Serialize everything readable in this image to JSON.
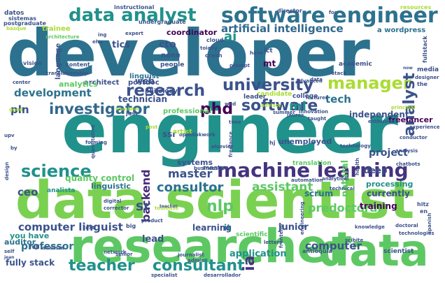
{
  "palette": {
    "dark_purple": "#440154",
    "indigo": "#3b528b",
    "teal_blue": "#2c728e",
    "teal": "#21918c",
    "green_teal": "#27ad81",
    "green": "#5dc863",
    "lime": "#aadc32",
    "yellow": "#fde725"
  },
  "words": [
    {
      "text": "developer",
      "color": "#2c728e"
    },
    {
      "text": "engineer",
      "color": "#21918c"
    },
    {
      "text": "data scientist",
      "color": "#7ad151"
    },
    {
      "text": "researcher",
      "color": "#5dc863"
    },
    {
      "text": "data",
      "color": "#5dc863"
    },
    {
      "text": "software engineer",
      "color": "#2c728e"
    },
    {
      "text": "data analyst",
      "color": "#21918c"
    },
    {
      "text": "machine learning",
      "color": "#46337e"
    },
    {
      "text": "research",
      "color": "#3b528b"
    },
    {
      "text": "manager",
      "color": "#aadc32"
    },
    {
      "text": "university",
      "color": "#3b528b"
    },
    {
      "text": "phd",
      "color": "#440154"
    },
    {
      "text": "software",
      "color": "#3b528b"
    },
    {
      "text": "investigator",
      "color": "#31688e"
    },
    {
      "text": "science",
      "color": "#21918c"
    },
    {
      "text": "teacher",
      "color": "#21918c"
    },
    {
      "text": "consultant",
      "color": "#21918c"
    },
    {
      "text": "consultor",
      "color": "#2c728e"
    },
    {
      "text": "assistant",
      "color": "#5dc863"
    },
    {
      "text": "analyst",
      "color": "#3b528b"
    },
    {
      "text": "nlp",
      "color": "#5dc863"
    },
    {
      "text": "computer linguist",
      "color": "#3b528b"
    },
    {
      "text": "professor",
      "color": "#2c728e"
    },
    {
      "text": "development",
      "color": "#2c728e"
    },
    {
      "text": "artificial intelligence",
      "color": "#31688e"
    },
    {
      "text": "master",
      "color": "#3b528b"
    },
    {
      "text": "backend",
      "color": "#472d7b"
    },
    {
      "text": "predoctoral",
      "color": "#5dc863"
    },
    {
      "text": "computer",
      "color": "#3b528b"
    },
    {
      "text": "ceo",
      "color": "#3b528b"
    },
    {
      "text": "ia",
      "color": "#46337e"
    },
    {
      "text": "ml",
      "color": "#21918c"
    },
    {
      "text": "sr",
      "color": "#3b528b"
    },
    {
      "text": "ai",
      "color": "#21918c"
    },
    {
      "text": "tech",
      "color": "#2c728e"
    },
    {
      "text": "cto",
      "color": "#3b528b"
    },
    {
      "text": "tics",
      "color": "#3b528b"
    },
    {
      "text": "coordinator",
      "color": "#440154"
    },
    {
      "text": "pln",
      "color": "#3b528b"
    },
    {
      "text": "scrum",
      "color": "#2c728e"
    },
    {
      "text": "project",
      "color": "#3b528b"
    },
    {
      "text": "junior",
      "color": "#3b528b"
    },
    {
      "text": "application",
      "color": "#21918c"
    },
    {
      "text": "lead",
      "color": "#3b528b"
    },
    {
      "text": "fully stack",
      "color": "#3b528b"
    },
    {
      "text": "auditor",
      "color": "#2c728e"
    },
    {
      "text": "you have",
      "color": "#21918c"
    },
    {
      "text": "learning",
      "color": "#3b528b"
    },
    {
      "text": "it",
      "color": "#2c728e"
    },
    {
      "text": "scientific",
      "color": "#5dc863"
    },
    {
      "text": "training",
      "color": "#440154"
    },
    {
      "text": "deep",
      "color": "#3b528b"
    },
    {
      "text": "processing",
      "color": "#21918c"
    },
    {
      "text": "currently",
      "color": "#3b528b"
    },
    {
      "text": "freelancer",
      "color": "#440154"
    },
    {
      "text": "independent",
      "color": "#3b528b"
    },
    {
      "text": "professional",
      "color": "#5dc863"
    },
    {
      "text": "technician",
      "color": "#3b528b"
    },
    {
      "text": "candidate",
      "color": "#aadc32"
    },
    {
      "text": "college",
      "color": "#3b528b"
    },
    {
      "text": "leader",
      "color": "#3b528b"
    },
    {
      "text": "postdoc",
      "color": "#3b528b"
    },
    {
      "text": "philology",
      "color": "#3b528b"
    },
    {
      "text": "linguist",
      "color": "#2c728e"
    },
    {
      "text": "architect",
      "color": "#3b528b"
    },
    {
      "text": "analytics",
      "color": "#5dc863"
    },
    {
      "text": "content",
      "color": "#3b528b"
    },
    {
      "text": "language",
      "color": "#3b528b"
    },
    {
      "text": "quality control",
      "color": "#5dc863"
    },
    {
      "text": "systems",
      "color": "#3b528b"
    },
    {
      "text": "linguistic",
      "color": "#2c728e"
    },
    {
      "text": "analista",
      "color": "#21918c"
    },
    {
      "text": "unemployed",
      "color": "#3b528b"
    },
    {
      "text": "natural",
      "color": "#5dc863"
    },
    {
      "text": "translation",
      "color": "#5dc863"
    },
    {
      "text": "ssr",
      "color": "#3b528b"
    },
    {
      "text": "mt",
      "color": "#440154"
    },
    {
      "text": "none",
      "color": "#3b528b"
    },
    {
      "text": "web",
      "color": "#3b528b"
    },
    {
      "text": "people",
      "color": "#3b528b"
    },
    {
      "text": "academic",
      "color": "#3b528b"
    },
    {
      "text": "undergraduate",
      "color": "#3b528b"
    },
    {
      "text": "a wordpress",
      "color": "#2c728e"
    },
    {
      "text": "master",
      "color": "#3b528b"
    },
    {
      "text": "datos",
      "color": "#3b528b"
    },
    {
      "text": "instructional",
      "color": "#3b528b"
    },
    {
      "text": "director",
      "color": "#3b528b"
    },
    {
      "text": "resources",
      "color": "#aadc32"
    },
    {
      "text": "sistemas",
      "color": "#3b528b"
    },
    {
      "text": "postgraduate",
      "color": "#3b528b"
    },
    {
      "text": "trainee",
      "color": "#aadc32"
    },
    {
      "text": "architecture",
      "color": "#5dc863"
    },
    {
      "text": "fullstack",
      "color": "#3b528b"
    },
    {
      "text": "ict",
      "color": "#3b528b"
    },
    {
      "text": "cloud",
      "color": "#3b528b"
    },
    {
      "text": "toially",
      "color": "#3b528b"
    },
    {
      "text": "crash",
      "color": "#3b528b"
    },
    {
      "text": "have",
      "color": "#3b528b"
    },
    {
      "text": "media",
      "color": "#3b528b"
    },
    {
      "text": "vision",
      "color": "#3b528b"
    },
    {
      "text": "translationship",
      "color": "#3b528b"
    },
    {
      "text": "prompt",
      "color": "#3b528b"
    },
    {
      "text": "stack",
      "color": "#3b528b"
    },
    {
      "text": "now",
      "color": "#3b528b"
    },
    {
      "text": "designer",
      "color": "#3b528b"
    },
    {
      "text": "center",
      "color": "#3b528b"
    },
    {
      "text": "advanced",
      "color": "#3b528b"
    },
    {
      "text": "data",
      "color": "#3b528b"
    },
    {
      "text": "lecturer",
      "color": "#3b528b"
    },
    {
      "text": "advisor",
      "color": "#aadc32"
    },
    {
      "text": "summer",
      "color": "#3b528b"
    },
    {
      "text": "jaures",
      "color": "#3b528b"
    },
    {
      "text": "innovation",
      "color": "#3b528b"
    },
    {
      "text": "taught",
      "color": "#3b528b"
    },
    {
      "text": "enthusiast",
      "color": "#3b528b"
    },
    {
      "text": "principal",
      "color": "#aadc32"
    },
    {
      "text": "experience",
      "color": "#3b528b"
    },
    {
      "text": "conductor",
      "color": "#3b528b"
    },
    {
      "text": "technology",
      "color": "#3b528b"
    },
    {
      "text": "chatbots",
      "color": "#3b528b"
    },
    {
      "text": "automation",
      "color": "#3b528b"
    },
    {
      "text": "analytical",
      "color": "#3b528b"
    },
    {
      "text": "technical",
      "color": "#3b528b"
    },
    {
      "text": "knowledge",
      "color": "#3b528b"
    },
    {
      "text": "engineering",
      "color": "#3b528b"
    },
    {
      "text": "scibite",
      "color": "#3b528b"
    },
    {
      "text": "technologies",
      "color": "#3b528b"
    },
    {
      "text": "doctoral",
      "color": "#3b528b"
    },
    {
      "text": "frontend",
      "color": "#3b528b"
    },
    {
      "text": "letters",
      "color": "#3b528b"
    },
    {
      "text": "antioquia",
      "color": "#3b528b"
    },
    {
      "text": "scientist",
      "color": "#3b528b"
    },
    {
      "text": "admin",
      "color": "#3b528b"
    },
    {
      "text": "journalist",
      "color": "#3b528b"
    },
    {
      "text": "desarrollador",
      "color": "#3b528b"
    },
    {
      "text": "specialist",
      "color": "#3b528b"
    },
    {
      "text": "senior",
      "color": "#3b528b"
    },
    {
      "text": "network",
      "color": "#3b528b"
    },
    {
      "text": "self",
      "color": "#3b528b"
    },
    {
      "text": "full",
      "color": "#3b528b"
    },
    {
      "text": "analista",
      "color": "#3b528b"
    },
    {
      "text": "text",
      "color": "#3b528b"
    },
    {
      "text": "big",
      "color": "#3b528b"
    },
    {
      "text": "product",
      "color": "#3b528b"
    },
    {
      "text": "corrector",
      "color": "#3b528b"
    },
    {
      "text": "digital",
      "color": "#3b528b"
    },
    {
      "text": "toulouse",
      "color": "#aadc32"
    },
    {
      "text": "business",
      "color": "#3b528b"
    },
    {
      "text": "opentokwork",
      "color": "#3b528b"
    },
    {
      "text": "artist",
      "color": "#aadc32"
    },
    {
      "text": "forming",
      "color": "#3b528b"
    },
    {
      "text": "quantitative",
      "color": "#3b528b"
    },
    {
      "text": "expert",
      "color": "#3b528b"
    },
    {
      "text": "elsevier",
      "color": "#3b528b"
    },
    {
      "text": "good",
      "color": "#aadc32"
    },
    {
      "text": "just",
      "color": "#3b528b"
    },
    {
      "text": "time",
      "color": "#3b528b"
    },
    {
      "text": "wed",
      "color": "#3b528b"
    },
    {
      "text": "post",
      "color": "#aadc32"
    },
    {
      "text": "design",
      "color": "#3b528b"
    },
    {
      "text": "jean",
      "color": "#3b528b"
    },
    {
      "text": "ing",
      "color": "#3b528b"
    },
    {
      "text": "ehu",
      "color": "#3b528b"
    },
    {
      "text": "freelance",
      "color": "#3b528b"
    },
    {
      "text": "health",
      "color": "#3b528b"
    },
    {
      "text": "hitz",
      "color": "#3b528b"
    },
    {
      "text": "en",
      "color": "#3b528b"
    },
    {
      "text": "spanish",
      "color": "#3b528b"
    },
    {
      "text": "for",
      "color": "#3b528b"
    },
    {
      "text": "upv",
      "color": "#3b528b"
    },
    {
      "text": "by",
      "color": "#3b528b"
    },
    {
      "text": "the",
      "color": "#3b528b"
    },
    {
      "text": "hj",
      "color": "#3b528b"
    },
    {
      "text": "analysis",
      "color": "#3b528b"
    },
    {
      "text": "teacher",
      "color": "#3b528b"
    },
    {
      "text": "translator",
      "color": "#aadc32"
    },
    {
      "text": "basque",
      "color": "#aadc32"
    }
  ]
}
